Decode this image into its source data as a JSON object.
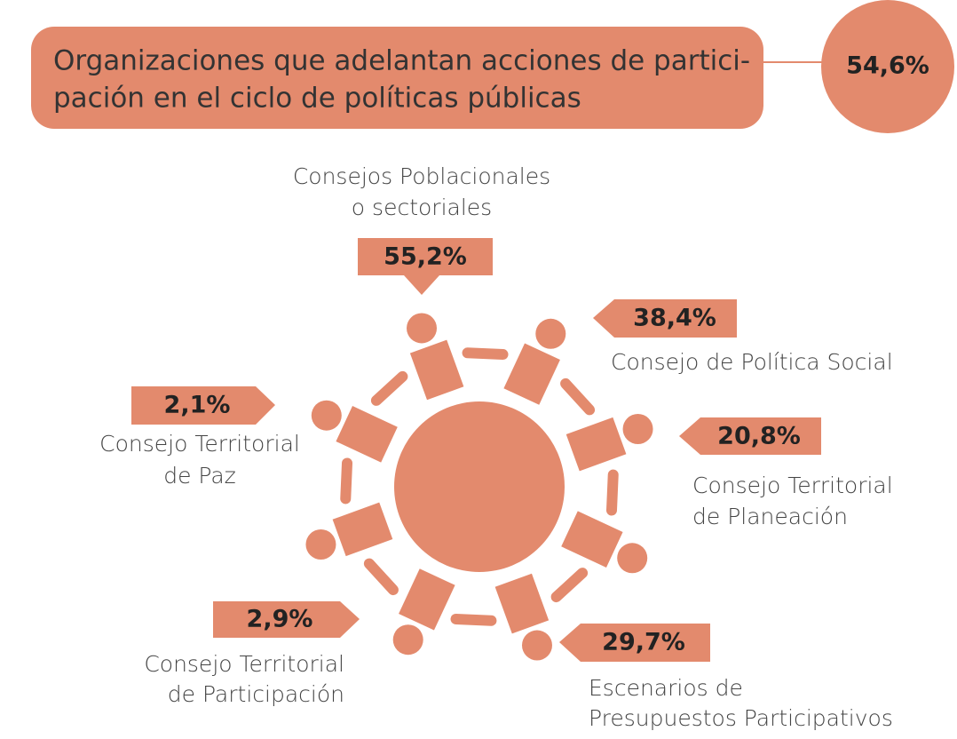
{
  "header": {
    "title": [
      "Organizaciones que adelantan acciones de partici-",
      "pación en el ciclo de políticas públicas"
    ],
    "value": "54,6%"
  },
  "items": [
    {
      "value": "55,2%",
      "label": [
        "Consejos Poblacionales",
        "o sectoriales"
      ]
    },
    {
      "value": "38,4%",
      "label": [
        "Consejo de Política Social"
      ]
    },
    {
      "value": "20,8%",
      "label": [
        "Consejo Territorial",
        "de Planeación"
      ]
    },
    {
      "value": "29,7%",
      "label": [
        "Escenarios  de",
        "Presupuestos Participativos"
      ]
    },
    {
      "value": "2,9%",
      "label": [
        "Consejo Territorial",
        "de Participación"
      ]
    },
    {
      "value": "2,1%",
      "label": [
        "Consejo Territorial",
        "de Paz"
      ]
    }
  ]
}
